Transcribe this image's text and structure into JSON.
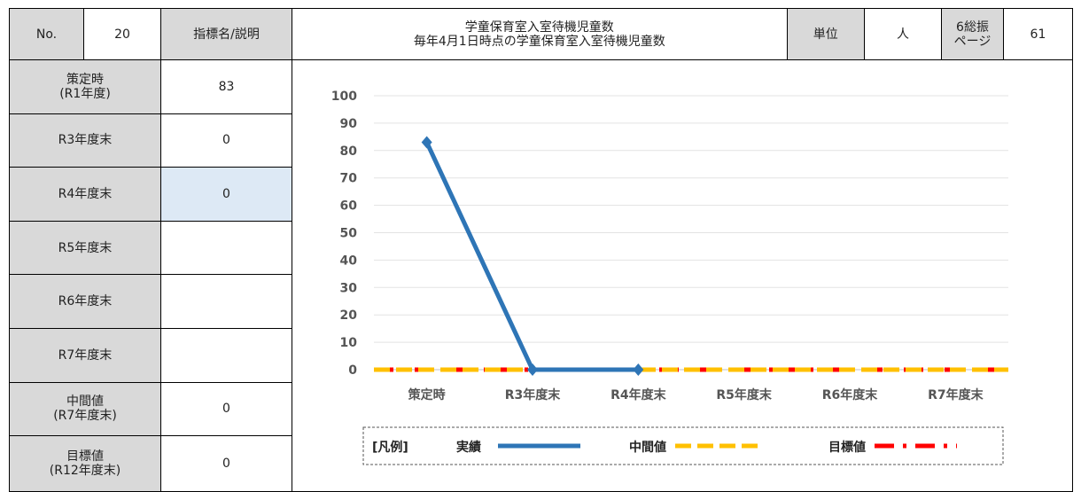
{
  "header": {
    "no_label": "No.",
    "no_value": "20",
    "indicator_label": "指標名/説明",
    "indicator_title": "学童保育室入室待機児童数",
    "indicator_desc": "毎年4月1日時点の学童保育室入室待機児童数",
    "unit_label": "単位",
    "unit_value": "人",
    "page_label_1": "6総振",
    "page_label_2": "ページ",
    "page_value": "61"
  },
  "rows": [
    {
      "label": "策定時",
      "sublabel": "(R1年度)",
      "value": "83"
    },
    {
      "label": "R3年度末",
      "sublabel": "",
      "value": "0"
    },
    {
      "label": "R4年度末",
      "sublabel": "",
      "value": "0"
    },
    {
      "label": "R5年度末",
      "sublabel": "",
      "value": ""
    },
    {
      "label": "R6年度末",
      "sublabel": "",
      "value": ""
    },
    {
      "label": "R7年度末",
      "sublabel": "",
      "value": ""
    },
    {
      "label": "中間値",
      "sublabel": "(R7年度末)",
      "value": "0"
    },
    {
      "label": "目標値",
      "sublabel": "(R12年度末)",
      "value": "0"
    }
  ],
  "chart_data": {
    "type": "line",
    "categories": [
      "策定時",
      "R3年度末",
      "R4年度末",
      "R5年度末",
      "R6年度末",
      "R7年度末"
    ],
    "ylim": [
      0,
      100
    ],
    "yticks": [
      "0",
      "10",
      "20",
      "30",
      "40",
      "50",
      "60",
      "70",
      "80",
      "90",
      "100"
    ],
    "series": [
      {
        "name": "実績",
        "values": [
          83,
          0,
          0,
          null,
          null,
          null
        ],
        "color": "#2e75b6",
        "style": "solid"
      },
      {
        "name": "中間値",
        "values": [
          0,
          0,
          0,
          0,
          0,
          0
        ],
        "color": "#ffc000",
        "style": "dashed"
      },
      {
        "name": "目標値",
        "values": [
          0,
          0,
          0,
          0,
          0,
          0
        ],
        "color": "#ff0000",
        "style": "dashed"
      }
    ],
    "legend_title": "[凡例]",
    "legend_position": "bottom",
    "grid": true
  }
}
